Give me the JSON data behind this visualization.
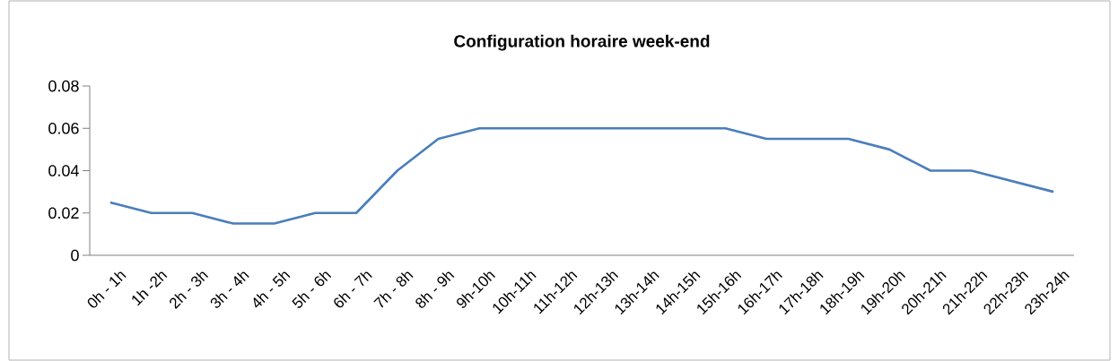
{
  "chart_data": {
    "type": "line",
    "title": "Configuration horaire week-end",
    "categories": [
      "0h - 1h",
      "1h -2h",
      "2h - 3h",
      "3h - 4h",
      "4h - 5h",
      "5h - 6h",
      "6h - 7h",
      "7h - 8h",
      "8h - 9h",
      "9h-10h",
      "10h-11h",
      "11h-12h",
      "12h-13h",
      "13h-14h",
      "14h-15h",
      "15h-16h",
      "16h-17h",
      "17h-18h",
      "18h-19h",
      "19h-20h",
      "20h-21h",
      "21h-22h",
      "22h-23h",
      "23h-24h"
    ],
    "values": [
      0.025,
      0.02,
      0.02,
      0.015,
      0.015,
      0.02,
      0.02,
      0.04,
      0.055,
      0.06,
      0.06,
      0.06,
      0.06,
      0.06,
      0.06,
      0.06,
      0.055,
      0.055,
      0.055,
      0.05,
      0.04,
      0.04,
      0.035,
      0.03
    ],
    "color": "#4a7ebb",
    "ylim": [
      0,
      0.08
    ],
    "yticks": [
      0,
      0.02,
      0.04,
      0.06,
      0.08
    ],
    "grid": false,
    "marker": "none",
    "line_style": "solid"
  }
}
